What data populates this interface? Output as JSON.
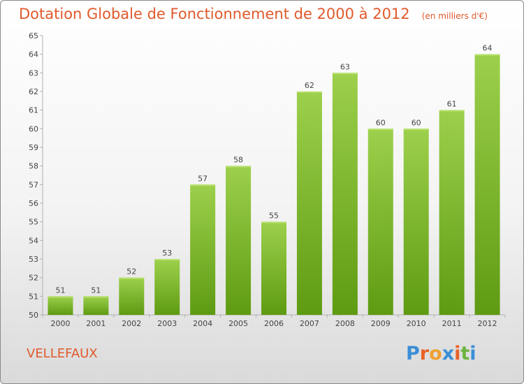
{
  "header": {
    "title": "Dotation Globale de Fonctionnement de 2000 à 2012",
    "unit": "(en milliers d'€)"
  },
  "footer": {
    "commune": "VELLEFAUX",
    "logo": "Proxiti",
    "logo_colors": [
      "#3b8ed6",
      "#e8632a",
      "#f0a030",
      "#3b8ed6",
      "#e8632a",
      "#6cb33f",
      "#3b8ed6"
    ]
  },
  "colors": {
    "title": "#e05a2c",
    "bar_top": "#9dd04c",
    "bar_bottom": "#5e9b12",
    "axis": "#b0b0b0",
    "label": "#444444"
  },
  "chart_data": {
    "type": "bar",
    "title": "Dotation Globale de Fonctionnement de 2000 à 2012",
    "subtitle": "(en milliers d'€)",
    "xlabel": "",
    "ylabel": "",
    "categories": [
      "2000",
      "2001",
      "2002",
      "2003",
      "2004",
      "2005",
      "2006",
      "2007",
      "2008",
      "2009",
      "2010",
      "2011",
      "2012"
    ],
    "values": [
      51,
      51,
      52,
      53,
      57,
      58,
      55,
      62,
      63,
      60,
      60,
      61,
      64
    ],
    "ylim": [
      50,
      65
    ],
    "yticks": [
      50,
      51,
      52,
      53,
      54,
      55,
      56,
      57,
      58,
      59,
      60,
      61,
      62,
      63,
      64,
      65
    ],
    "grid": false,
    "data_labels": true
  }
}
